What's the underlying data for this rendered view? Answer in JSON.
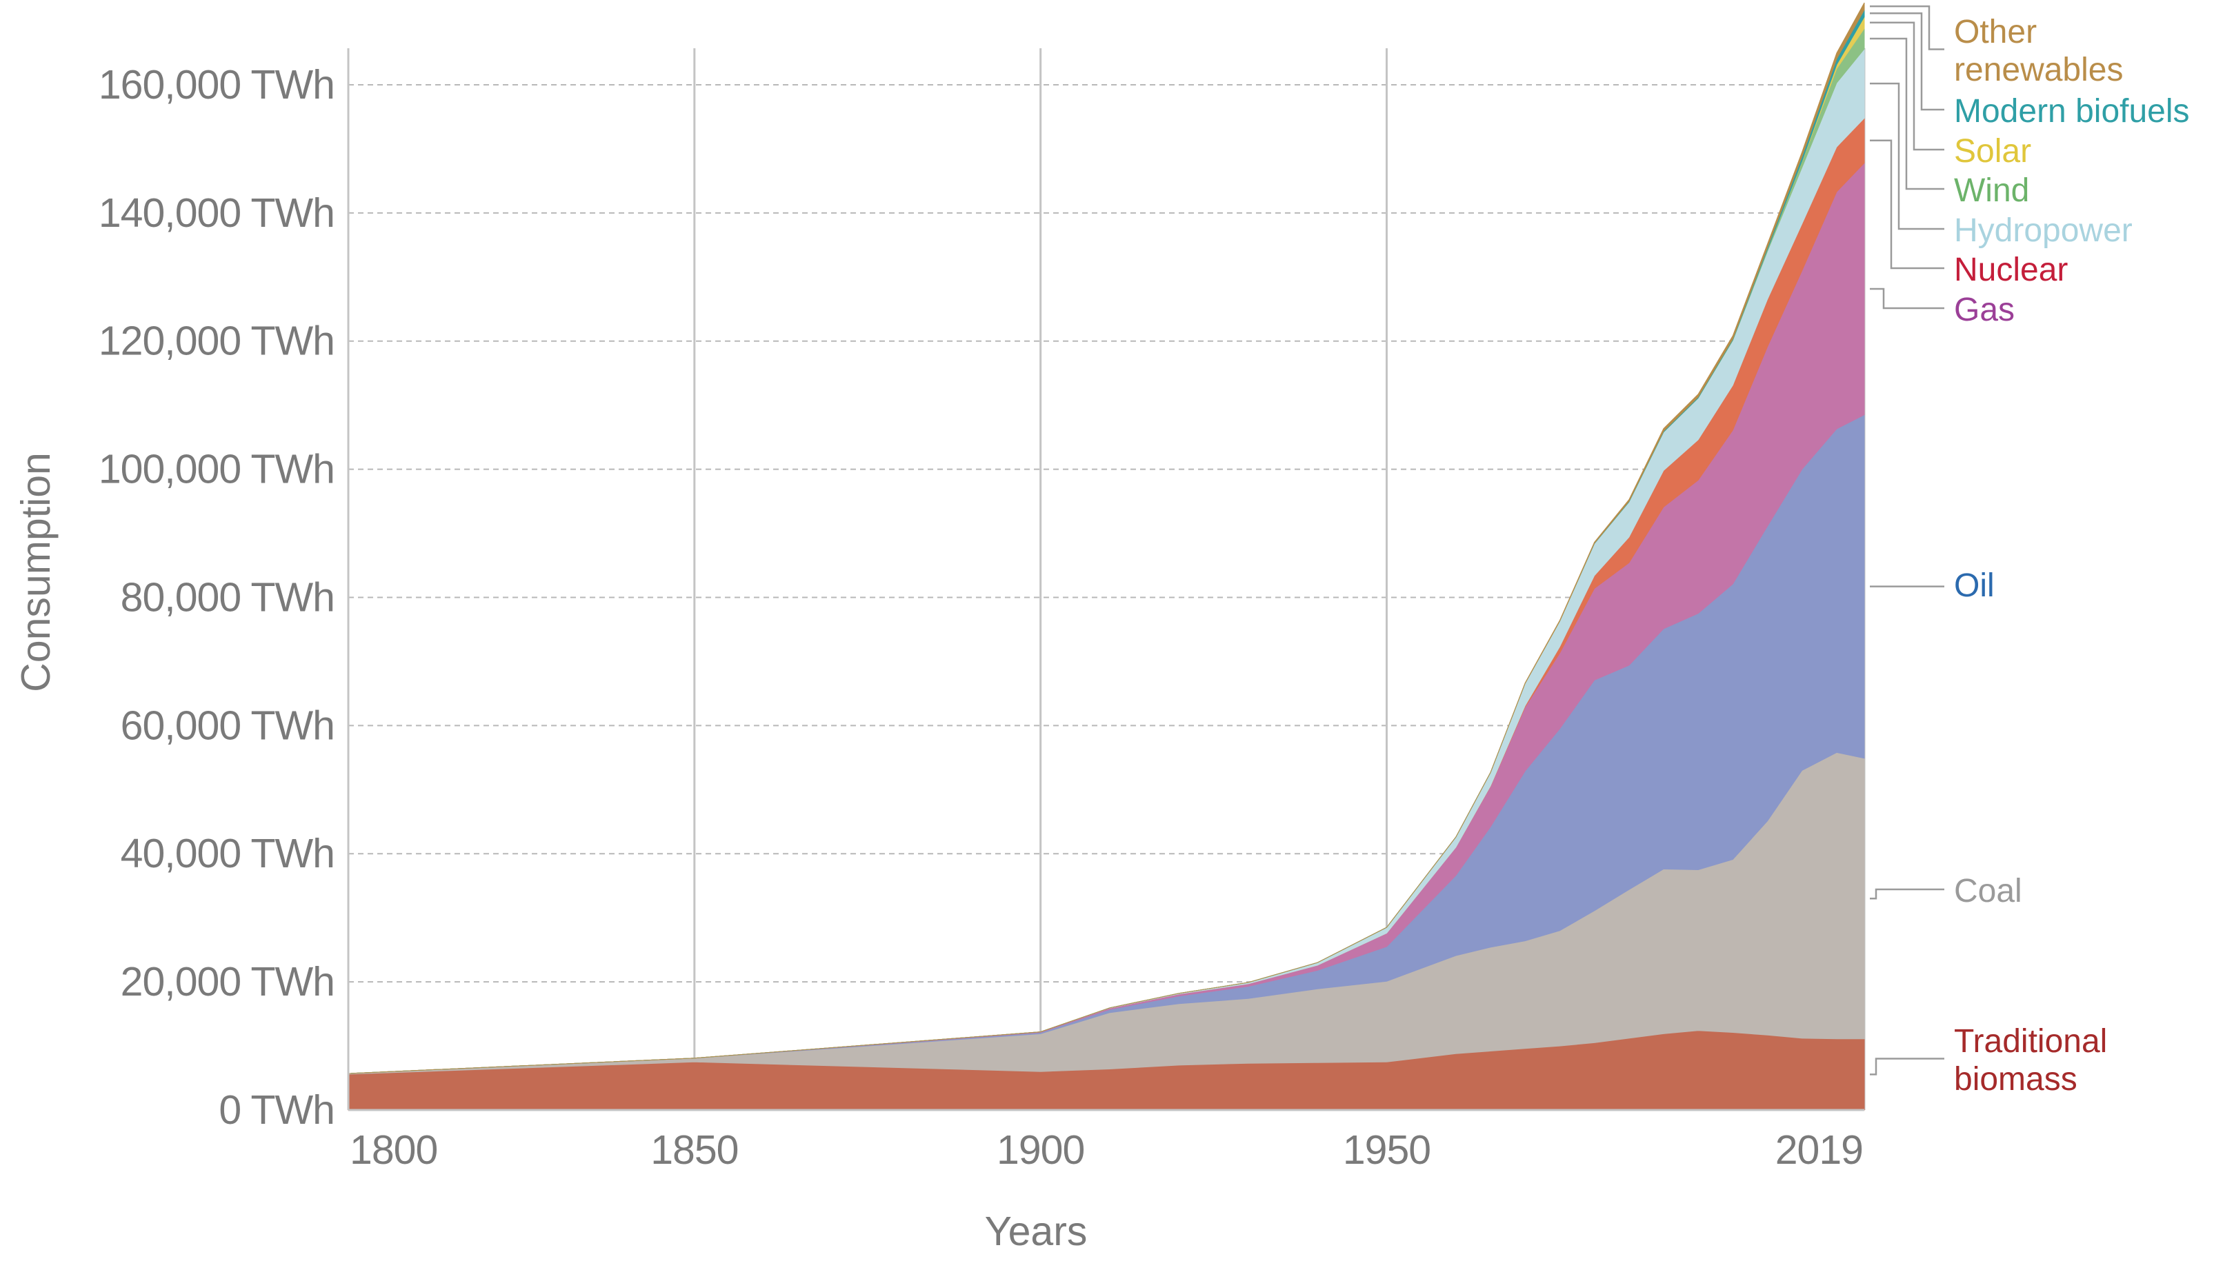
{
  "chart_data": {
    "type": "area",
    "stacked": true,
    "title": "",
    "xlabel": "Years",
    "ylabel": "Consumption",
    "xlim": [
      1800,
      2019
    ],
    "ylim": [
      0,
      170000
    ],
    "grid": {
      "horizontal": "dashed",
      "vertical": "solid"
    },
    "x_ticks": [
      {
        "value": 1800,
        "label": "1800"
      },
      {
        "value": 1850,
        "label": "1850"
      },
      {
        "value": 1900,
        "label": "1900"
      },
      {
        "value": 1950,
        "label": "1950"
      },
      {
        "value": 2019,
        "label": "2019"
      }
    ],
    "y_ticks": [
      {
        "value": 0,
        "label": "0 TWh"
      },
      {
        "value": 20000,
        "label": "20,000 TWh"
      },
      {
        "value": 40000,
        "label": "40,000 TWh"
      },
      {
        "value": 60000,
        "label": "60,000 TWh"
      },
      {
        "value": 80000,
        "label": "80,000 TWh"
      },
      {
        "value": 100000,
        "label": "100,000 TWh"
      },
      {
        "value": 120000,
        "label": "120,000 TWh"
      },
      {
        "value": 140000,
        "label": "140,000 TWh"
      },
      {
        "value": 160000,
        "label": "160,000 TWh"
      }
    ],
    "x": [
      1800,
      1850,
      1900,
      1910,
      1920,
      1930,
      1940,
      1950,
      1960,
      1965,
      1970,
      1975,
      1980,
      1985,
      1990,
      1995,
      2000,
      2005,
      2010,
      2015,
      2019
    ],
    "series": [
      {
        "name": "Traditional biomass",
        "color": "#c36b53",
        "values": [
          5600,
          7500,
          6000,
          6400,
          7000,
          7300,
          7400,
          7500,
          8800,
          9200,
          9600,
          10000,
          10500,
          11200,
          11900,
          12400,
          12100,
          11700,
          11200,
          11100,
          11100
        ]
      },
      {
        "name": "Coal",
        "color": "#beb7b1",
        "values": [
          100,
          600,
          5900,
          8800,
          9600,
          10100,
          11500,
          12600,
          15300,
          16200,
          16800,
          18000,
          20600,
          23200,
          25700,
          25100,
          27000,
          33400,
          41800,
          44700,
          43800
        ]
      },
      {
        "name": "Oil",
        "color": "#8a97c9",
        "values": [
          0,
          0,
          200,
          500,
          1200,
          1900,
          2900,
          5400,
          12500,
          18800,
          26500,
          31500,
          36000,
          35000,
          37500,
          40000,
          43000,
          46000,
          47000,
          50500,
          53600
        ]
      },
      {
        "name": "Gas",
        "color": "#c375a8",
        "values": [
          0,
          0,
          100,
          200,
          300,
          400,
          800,
          2100,
          4400,
          6300,
          10000,
          11800,
          14300,
          16000,
          19000,
          20800,
          24000,
          28000,
          31000,
          37000,
          39300
        ]
      },
      {
        "name": "Nuclear",
        "color": "#e07151",
        "values": [
          0,
          0,
          0,
          0,
          0,
          0,
          0,
          0,
          0,
          70,
          190,
          1000,
          2000,
          4000,
          5700,
          6300,
          7000,
          7400,
          7300,
          7000,
          7000
        ]
      },
      {
        "name": "Hydropower",
        "color": "#bddce3",
        "values": [
          0,
          0,
          0,
          50,
          100,
          200,
          400,
          900,
          1600,
          2100,
          3500,
          4000,
          5000,
          5500,
          6000,
          6500,
          7000,
          7500,
          8800,
          10000,
          10800
        ]
      },
      {
        "name": "Wind",
        "color": "#8cc184",
        "values": [
          0,
          0,
          0,
          0,
          0,
          0,
          0,
          0,
          0,
          0,
          0,
          0,
          0,
          0,
          10,
          20,
          80,
          280,
          900,
          2200,
          3200
        ]
      },
      {
        "name": "Solar",
        "color": "#e3cd55",
        "values": [
          0,
          0,
          0,
          0,
          0,
          0,
          0,
          0,
          0,
          0,
          0,
          0,
          0,
          0,
          0,
          0,
          2,
          10,
          100,
          640,
          1800
        ]
      },
      {
        "name": "Modern biofuels",
        "color": "#2f9fa6",
        "values": [
          0,
          0,
          0,
          0,
          0,
          0,
          0,
          0,
          0,
          0,
          0,
          0,
          50,
          100,
          130,
          150,
          150,
          300,
          700,
          900,
          1100
        ]
      },
      {
        "name": "Other renewables",
        "color": "#b98d49",
        "values": [
          0,
          0,
          0,
          0,
          0,
          0,
          0,
          0,
          0,
          0,
          50,
          100,
          150,
          250,
          400,
          450,
          500,
          550,
          700,
          900,
          1100
        ]
      }
    ],
    "legend": {
      "placement": "right",
      "entries": [
        {
          "series": "Other renewables",
          "label": "Other renewables",
          "lines": [
            "Other",
            "renewables"
          ],
          "color": "#b98d49"
        },
        {
          "series": "Modern biofuels",
          "label": "Modern biofuels",
          "lines": [
            "Modern biofuels"
          ],
          "color": "#2f9fa6"
        },
        {
          "series": "Solar",
          "label": "Solar",
          "lines": [
            "Solar"
          ],
          "color": "#e0c63b"
        },
        {
          "series": "Wind",
          "label": "Wind",
          "lines": [
            "Wind"
          ],
          "color": "#6cb36a"
        },
        {
          "series": "Hydropower",
          "label": "Hydropower",
          "lines": [
            "Hydropower"
          ],
          "color": "#a9d3df"
        },
        {
          "series": "Nuclear",
          "label": "Nuclear",
          "lines": [
            "Nuclear"
          ],
          "color": "#c41e3a"
        },
        {
          "series": "Gas",
          "label": "Gas",
          "lines": [
            "Gas"
          ],
          "color": "#9b3f97"
        },
        {
          "series": "Oil",
          "label": "Oil",
          "lines": [
            "Oil"
          ],
          "color": "#2b6aae"
        },
        {
          "series": "Coal",
          "label": "Coal",
          "lines": [
            "Coal"
          ],
          "color": "#9a9a9a"
        },
        {
          "series": "Traditional biomass",
          "label": "Traditional biomass",
          "lines": [
            "Traditional",
            "biomass"
          ],
          "color": "#a52a2a"
        }
      ]
    }
  }
}
